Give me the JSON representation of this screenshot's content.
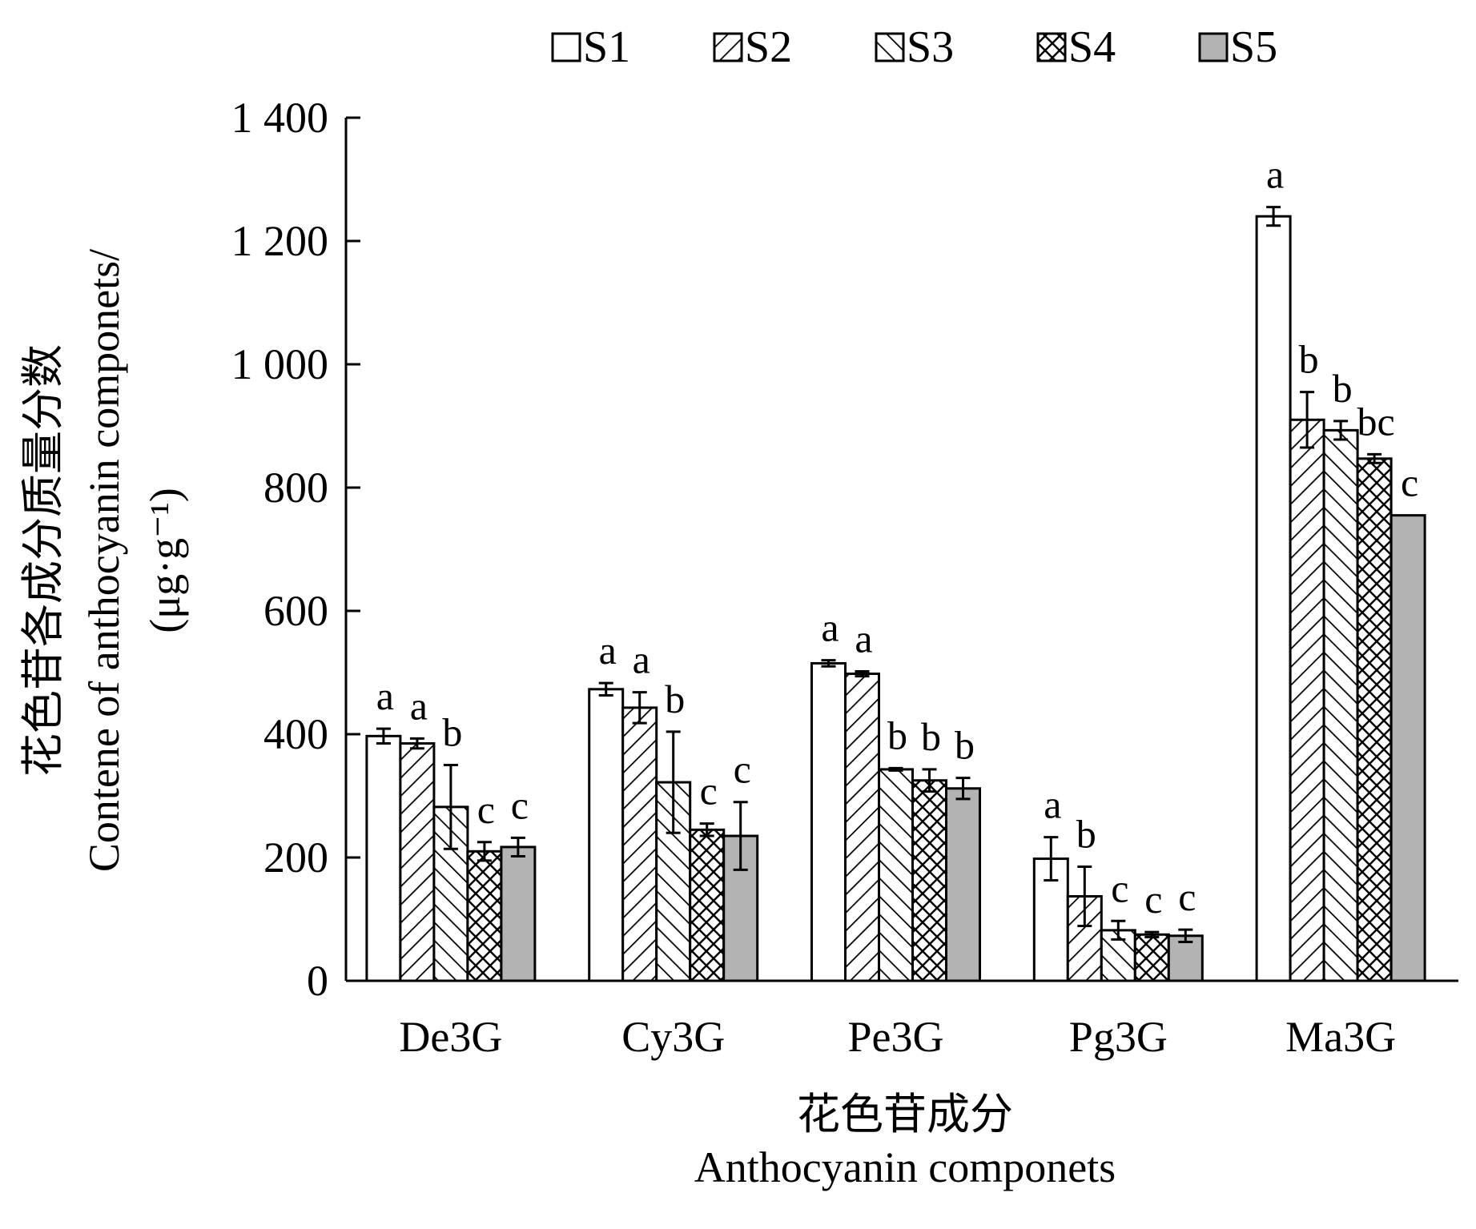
{
  "chart_data": {
    "type": "bar",
    "title": "",
    "xlabel": "花色苷成分",
    "xlabel_en": "Anthocyanin componets",
    "ylabel": "花色苷各成分质量分数",
    "ylabel_en": "Contene of anthocyanin componets/",
    "yunit": "(μg·g⁻¹)",
    "ylim": [
      0,
      1400
    ],
    "yticks": [
      {
        "value": 0,
        "label": "0"
      },
      {
        "value": 200,
        "label": "200"
      },
      {
        "value": 400,
        "label": "400"
      },
      {
        "value": 600,
        "label": "600"
      },
      {
        "value": 800,
        "label": "800"
      },
      {
        "value": 1000,
        "label": "1 000"
      },
      {
        "value": 1200,
        "label": "1 200"
      },
      {
        "value": 1400,
        "label": "1 400"
      }
    ],
    "categories": [
      "De3G",
      "Cy3G",
      "Pe3G",
      "Pg3G",
      "Ma3G"
    ],
    "legend_position": "top",
    "series": [
      {
        "name": "S1",
        "fill": "white",
        "values": [
          397,
          473,
          515,
          198,
          1240
        ],
        "errors": [
          12,
          10,
          5,
          35,
          15
        ],
        "letters": [
          "a",
          "a",
          "a",
          "a",
          "a"
        ]
      },
      {
        "name": "S2",
        "fill": "hatch-forward",
        "values": [
          385,
          443,
          498,
          137,
          910
        ],
        "errors": [
          8,
          25,
          4,
          48,
          45
        ],
        "letters": [
          "a",
          "a",
          "a",
          "b",
          "b"
        ]
      },
      {
        "name": "S3",
        "fill": "hatch-back",
        "values": [
          282,
          322,
          343,
          82,
          893
        ],
        "errors": [
          68,
          82,
          2,
          15,
          15
        ],
        "letters": [
          "b",
          "b",
          "b",
          "c",
          "b"
        ]
      },
      {
        "name": "S4",
        "fill": "crosshatch",
        "values": [
          210,
          245,
          325,
          75,
          847
        ],
        "errors": [
          15,
          10,
          18,
          4,
          7
        ],
        "letters": [
          "c",
          "c",
          "b",
          "c",
          "bc"
        ]
      },
      {
        "name": "S5",
        "fill": "#b3b3b3",
        "values": [
          217,
          235,
          312,
          73,
          755
        ],
        "errors": [
          15,
          55,
          17,
          10,
          0
        ],
        "letters": [
          "c",
          "c",
          "b",
          "c",
          "c"
        ]
      }
    ]
  }
}
